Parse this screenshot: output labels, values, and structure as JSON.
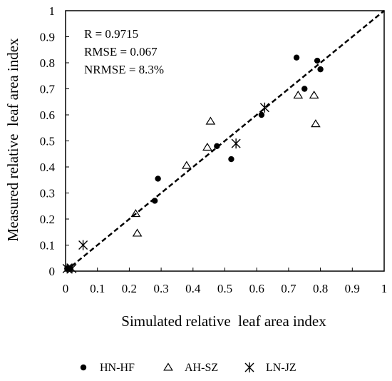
{
  "chart_data": {
    "type": "scatter",
    "title": "",
    "xlabel": "Simulated relative  leaf area index",
    "ylabel": "Measured relative  leaf area index",
    "xlim": [
      0,
      1
    ],
    "ylim": [
      0,
      1
    ],
    "xticks": [
      "0",
      "0.1",
      "0.2",
      "0.3",
      "0.4",
      "0.5",
      "0.6",
      "0.7",
      "0.8",
      "0.9",
      "1"
    ],
    "yticks": [
      "0",
      "0.1",
      "0.2",
      "0.3",
      "0.4",
      "0.5",
      "0.6",
      "0.7",
      "0.8",
      "0.9",
      "1"
    ],
    "grid": false,
    "legend_position": "bottom",
    "stats": [
      "R = 0.9715",
      "RMSE = 0.067",
      "NRMSE = 8.3%"
    ],
    "reference_line": {
      "style": "dashed",
      "from": [
        0,
        0
      ],
      "to": [
        1,
        1
      ]
    },
    "series": [
      {
        "name": "HN-HF",
        "marker": "filled-circle",
        "points": [
          [
            0.005,
            0.01
          ],
          [
            0.01,
            0.01
          ],
          [
            0.015,
            0.01
          ],
          [
            0.28,
            0.27
          ],
          [
            0.29,
            0.355
          ],
          [
            0.475,
            0.48
          ],
          [
            0.52,
            0.43
          ],
          [
            0.615,
            0.6
          ],
          [
            0.725,
            0.82
          ],
          [
            0.75,
            0.7
          ],
          [
            0.79,
            0.808
          ],
          [
            0.8,
            0.775
          ]
        ]
      },
      {
        "name": "AH-SZ",
        "marker": "open-triangle",
        "points": [
          [
            0.22,
            0.22
          ],
          [
            0.225,
            0.145
          ],
          [
            0.38,
            0.405
          ],
          [
            0.445,
            0.475
          ],
          [
            0.455,
            0.575
          ],
          [
            0.73,
            0.675
          ],
          [
            0.78,
            0.675
          ],
          [
            0.785,
            0.565
          ]
        ]
      },
      {
        "name": "LN-JZ",
        "marker": "star-x",
        "points": [
          [
            0.005,
            0.01
          ],
          [
            0.02,
            0.01
          ],
          [
            0.055,
            0.1
          ],
          [
            0.535,
            0.49
          ],
          [
            0.625,
            0.628
          ]
        ]
      }
    ]
  }
}
